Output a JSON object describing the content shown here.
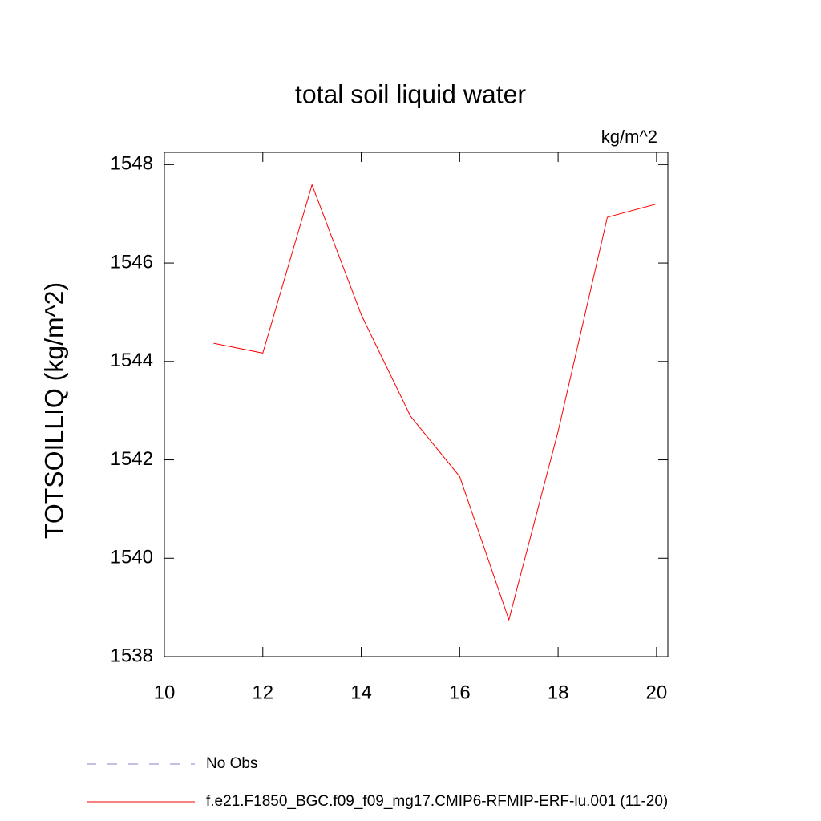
{
  "chart_data": {
    "type": "line",
    "title": "total soil liquid water",
    "units": "kg/m^2",
    "y_label": "TOTSOILLIQ  (kg/m^2)",
    "x": [
      11,
      12,
      13,
      14,
      15,
      16,
      17,
      18,
      19,
      20
    ],
    "series": [
      {
        "name": "No Obs",
        "color": "#8a7fc8",
        "dashed": true,
        "values": [
          null,
          null,
          null,
          null,
          null,
          null,
          null,
          null,
          null,
          null
        ]
      },
      {
        "name": "f.e21.F1850_BGC.f09_f09_mg17.CMIP6-RFMIP-ERF-lu.001 (11-20)",
        "color": "#ff0000",
        "dashed": false,
        "values": [
          1544.37,
          1544.17,
          1547.59,
          1544.95,
          1542.89,
          1541.66,
          1538.75,
          1542.58,
          1546.93,
          1547.2
        ]
      }
    ],
    "xlim": [
      10,
      20.23
    ],
    "xticks": [
      10,
      12,
      14,
      16,
      18,
      20
    ],
    "ylim": [
      1538,
      1548.25
    ],
    "yticks": [
      1538,
      1540,
      1542,
      1544,
      1546,
      1548
    ],
    "grid": false
  }
}
